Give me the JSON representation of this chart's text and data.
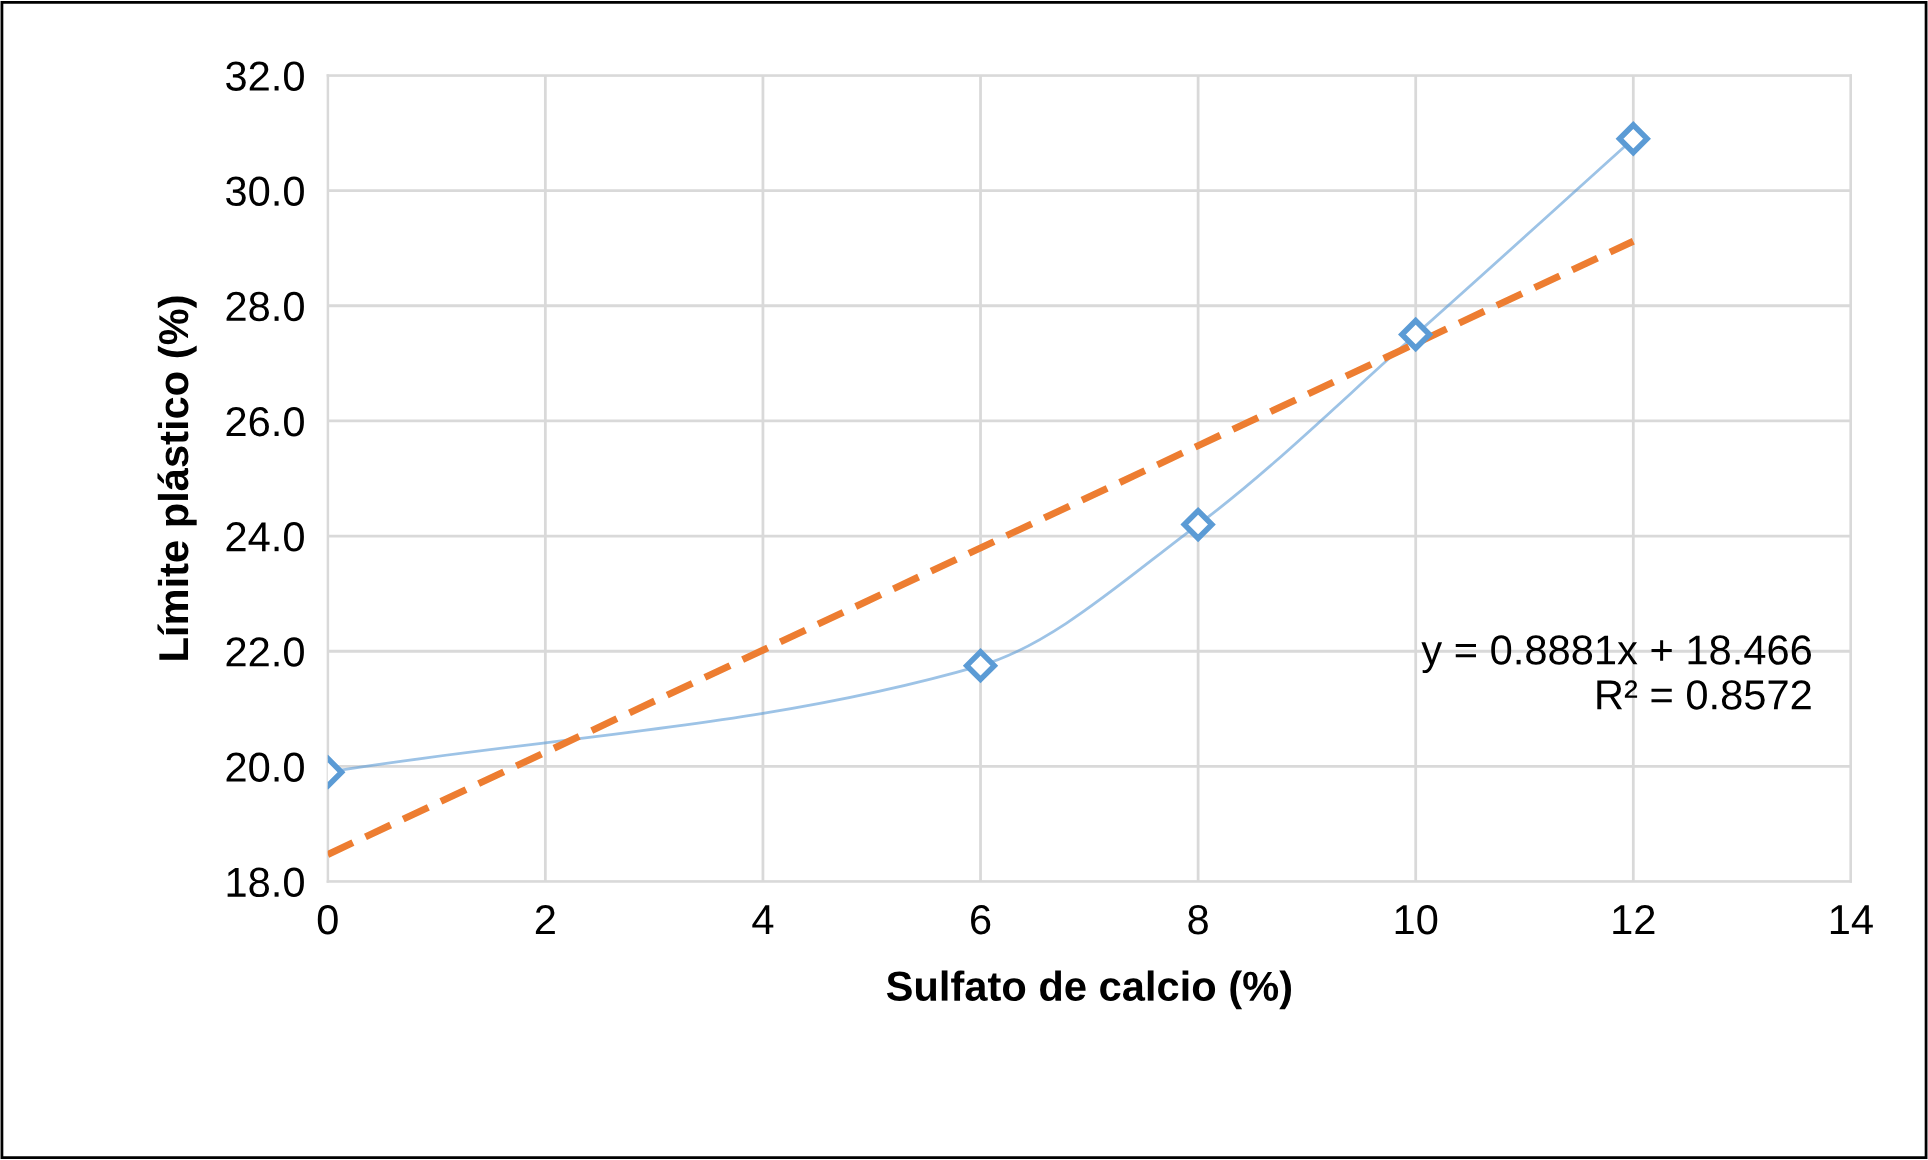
{
  "chart_data": {
    "type": "line",
    "xlabel": "Sulfato de calcio (%)",
    "ylabel": "Límite plástico (%)",
    "xlim": [
      0,
      14
    ],
    "xticks": [
      0,
      2,
      4,
      6,
      8,
      10,
      12,
      14
    ],
    "ylim": [
      18,
      32
    ],
    "yticks": [
      {
        "value": 18,
        "label": "18.0"
      },
      {
        "value": 20,
        "label": "20.0"
      },
      {
        "value": 22,
        "label": "22.0"
      },
      {
        "value": 24,
        "label": "24.0"
      },
      {
        "value": 26,
        "label": "26.0"
      },
      {
        "value": 28,
        "label": "28.0"
      },
      {
        "value": 30,
        "label": "30.0"
      },
      {
        "value": 32,
        "label": "32.0"
      }
    ],
    "grid": true,
    "legend": false,
    "series": [
      {
        "color": "#5b9bd5",
        "x": [
          0,
          6,
          8,
          10,
          12
        ],
        "values": [
          19.9,
          21.75,
          24.2,
          27.5,
          30.9
        ],
        "marker": "diamond",
        "line_style": "solid"
      },
      {
        "color": "#ed7d31",
        "x": [
          0,
          12
        ],
        "values": [
          18.47,
          29.12
        ],
        "marker": "none",
        "line_style": "dashed"
      }
    ],
    "annotations": [
      "y = 0.8881x + 18.466\nR² = 0.8572"
    ]
  }
}
